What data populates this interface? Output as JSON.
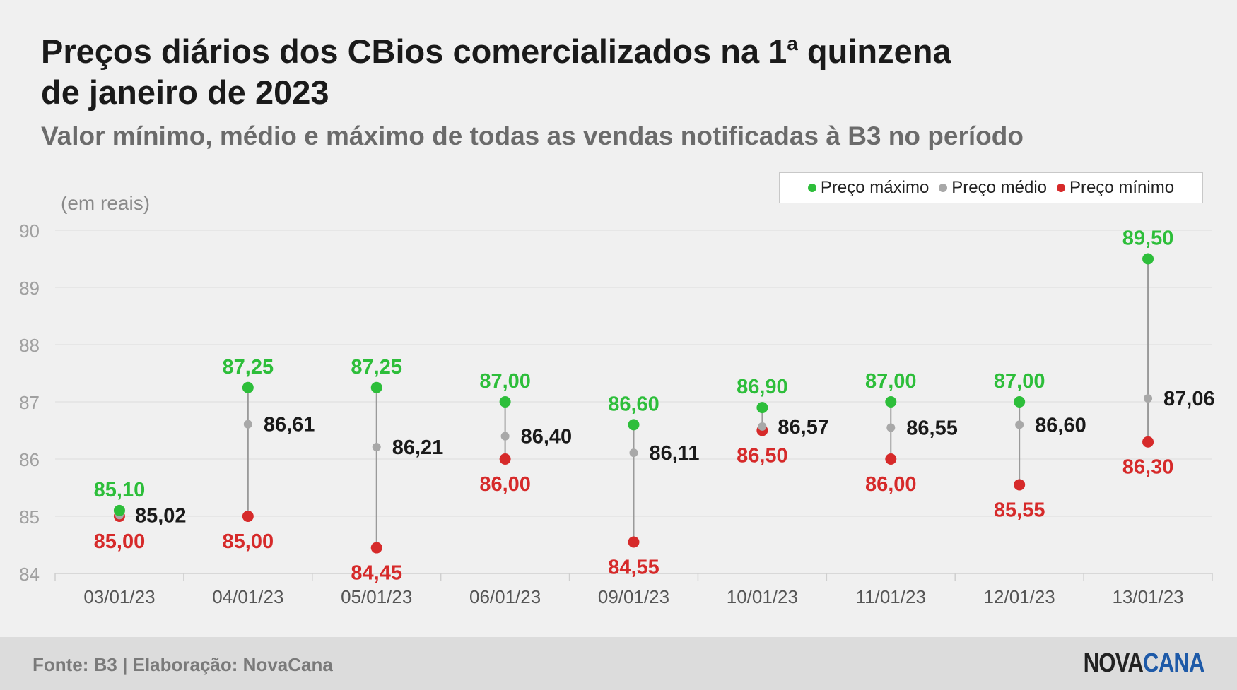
{
  "title_line1": "Preços diários dos CBios comercializados na 1",
  "title_sup": "a",
  "title_line1_end": " quinzena",
  "title_line2": "de janeiro de 2023",
  "subtitle": "Valor mínimo, médio e máximo de todas as vendas notificadas à B3 no período",
  "colors": {
    "max": "#2dbe3a",
    "avg": "#a8a8a8",
    "min": "#d62a2a",
    "label_avg": "#1a1a1a"
  },
  "footer": {
    "source": "Fonte: B3 | Elaboração: NovaCana",
    "brand_part1": "NOVA",
    "brand_part2": "CANA"
  },
  "chart_data": {
    "type": "scatter",
    "ylabel": "(em reais)",
    "ylim": [
      84,
      90
    ],
    "yticks": [
      "84",
      "85",
      "86",
      "87",
      "88",
      "89",
      "90"
    ],
    "grid": true,
    "legend_position": "top-right",
    "categories": [
      "03/01/23",
      "04/01/23",
      "05/01/23",
      "06/01/23",
      "09/01/23",
      "10/01/23",
      "11/01/23",
      "12/01/23",
      "13/01/23"
    ],
    "series": [
      {
        "name": "Preço máximo",
        "values": [
          85.1,
          87.25,
          87.25,
          87.0,
          86.6,
          86.9,
          87.0,
          87.0,
          89.5
        ],
        "labels": [
          "85,10",
          "87,25",
          "87,25",
          "87,00",
          "86,60",
          "86,90",
          "87,00",
          "87,00",
          "89,50"
        ]
      },
      {
        "name": "Preço médio",
        "values": [
          85.02,
          86.61,
          86.21,
          86.4,
          86.11,
          86.57,
          86.55,
          86.6,
          87.06
        ],
        "labels": [
          "85,02",
          "86,61",
          "86,21",
          "86,40",
          "86,11",
          "86,57",
          "86,55",
          "86,60",
          "87,06"
        ]
      },
      {
        "name": "Preço mínimo",
        "values": [
          85.0,
          85.0,
          84.45,
          86.0,
          84.55,
          86.5,
          86.0,
          85.55,
          86.3
        ],
        "labels": [
          "85,00",
          "85,00",
          "84,45",
          "86,00",
          "84,55",
          "86,50",
          "86,00",
          "85,55",
          "86,30"
        ]
      }
    ]
  }
}
